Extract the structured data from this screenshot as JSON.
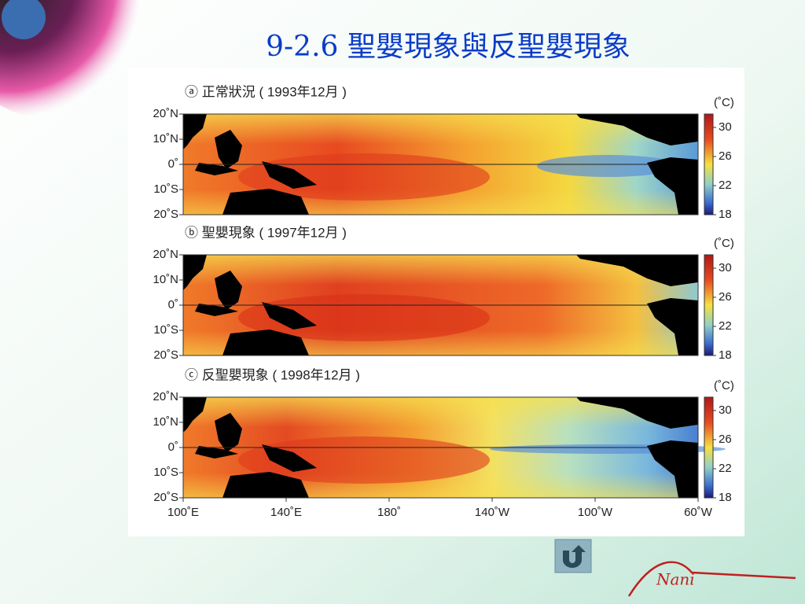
{
  "header": {
    "title": "9-2.6 聖嬰現象與反聖嬰現象"
  },
  "panels": [
    {
      "label": "ⓐ 正常狀況 ( 1993年12月 )"
    },
    {
      "label": "ⓑ 聖嬰現象 ( 1997年12月 )"
    },
    {
      "label": "ⓒ 反聖嬰現象 ( 1998年12月 )"
    }
  ],
  "lat_labels": [
    "20˚N",
    "10˚N",
    "0˚",
    "10˚S",
    "20˚S"
  ],
  "lon_labels": [
    "100˚E",
    "140˚E",
    "180˚",
    "140˚W",
    "100˚W",
    "60˚W"
  ],
  "colorbar": {
    "unit": "(˚C)",
    "ticks": [
      30,
      26,
      22,
      18
    ]
  },
  "logo": "Nani"
}
